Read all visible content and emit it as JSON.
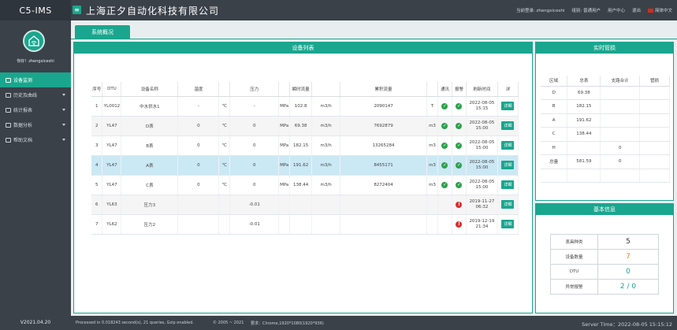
{
  "app": {
    "brand": "C5-IMS",
    "company": "上海正夕自动化科技有限公司",
    "menu_glyph": "≡"
  },
  "topnav": {
    "login": "当前登录: zhengxiceshi",
    "group": "组别: 普通用户",
    "user_center": "用户中心",
    "logout": "退出",
    "language": "简体中文"
  },
  "sidebar": {
    "greeting": "你好！zhengxiceshi",
    "items": [
      {
        "label": "设备监测",
        "active": true
      },
      {
        "label": "历史及曲线"
      },
      {
        "label": "统计报表"
      },
      {
        "label": "数据分析"
      },
      {
        "label": "帮助文档"
      }
    ],
    "version": "V2021.04.20"
  },
  "tab": {
    "label": "系统概况"
  },
  "devices": {
    "title": "设备列表",
    "headers": [
      "序号",
      "DTU",
      "设备名称",
      "温度",
      "",
      "压力",
      "",
      "瞬时流量",
      "",
      "累积流量",
      "",
      "通讯",
      "报警",
      "刷新时间",
      "详"
    ],
    "rows": [
      {
        "no": "1",
        "dtu": "YL0012",
        "name": "中水供水1",
        "temp": "-",
        "temp_unit": "℃",
        "press": "-",
        "press_unit": "MPa",
        "flow": "102.8",
        "flow_unit": "m3/h",
        "total": "2090147",
        "total_unit": "T",
        "comm": "ok",
        "alarm": "ok",
        "time1": "2022-08-05",
        "time2": "15:15",
        "detail": "详细"
      },
      {
        "no": "2",
        "dtu": "YL47",
        "name": "D表",
        "temp": "0",
        "temp_unit": "℃",
        "press": "0",
        "press_unit": "MPa",
        "flow": "69.38",
        "flow_unit": "m3/h",
        "total": "7692879",
        "total_unit": "m3",
        "comm": "ok",
        "alarm": "ok",
        "time1": "2022-08-05",
        "time2": "15:00",
        "detail": "详细"
      },
      {
        "no": "3",
        "dtu": "YL47",
        "name": "B表",
        "temp": "0",
        "temp_unit": "℃",
        "press": "0",
        "press_unit": "MPa",
        "flow": "182.15",
        "flow_unit": "m3/h",
        "total": "13265284",
        "total_unit": "m3",
        "comm": "ok",
        "alarm": "ok",
        "time1": "2022-08-05",
        "time2": "15:00",
        "detail": "详细"
      },
      {
        "no": "4",
        "dtu": "YL47",
        "name": "A表",
        "temp": "0",
        "temp_unit": "℃",
        "press": "0",
        "press_unit": "MPa",
        "flow": "191.62",
        "flow_unit": "m3/h",
        "total": "8455171",
        "total_unit": "m3",
        "comm": "ok",
        "alarm": "ok",
        "time1": "2022-08-05",
        "time2": "15:00",
        "detail": "详细"
      },
      {
        "no": "5",
        "dtu": "YL47",
        "name": "C表",
        "temp": "0",
        "temp_unit": "℃",
        "press": "0",
        "press_unit": "MPa",
        "flow": "138.44",
        "flow_unit": "m3/h",
        "total": "8272404",
        "total_unit": "m3",
        "comm": "ok",
        "alarm": "ok",
        "time1": "2022-08-05",
        "time2": "15:00",
        "detail": "详细"
      },
      {
        "no": "6",
        "dtu": "YL63",
        "name": "压力3",
        "temp": "",
        "temp_unit": "",
        "press": "-0.01",
        "press_unit": "",
        "flow": "",
        "flow_unit": "",
        "total": "",
        "total_unit": "",
        "comm": "",
        "alarm": "bad",
        "time1": "2019-11-27",
        "time2": "06:32",
        "detail": "详细"
      },
      {
        "no": "7",
        "dtu": "YL62",
        "name": "压力2",
        "temp": "",
        "temp_unit": "",
        "press": "-0.01",
        "press_unit": "",
        "flow": "",
        "flow_unit": "",
        "total": "",
        "total_unit": "",
        "comm": "",
        "alarm": "bad",
        "time1": "2019-12-19",
        "time2": "21:34",
        "detail": "详细"
      }
    ]
  },
  "realtime": {
    "title": "实时管损",
    "headers": [
      "区域",
      "总表",
      "支路合计",
      "管损"
    ],
    "rows": [
      [
        "D",
        "69.38",
        "",
        ""
      ],
      [
        "B",
        "182.15",
        "",
        ""
      ],
      [
        "A",
        "191.62",
        "",
        ""
      ],
      [
        "C",
        "138.44",
        "",
        ""
      ],
      [
        "H",
        "",
        "0",
        ""
      ],
      [
        "总量",
        "581.59",
        "0",
        ""
      ],
      [
        "",
        "",
        "",
        ""
      ]
    ]
  },
  "info": {
    "title": "基本信息",
    "rows": [
      {
        "label": "表具种类",
        "value": "5",
        "color": "#333333"
      },
      {
        "label": "设备数量",
        "value": "7",
        "color": "#f07a1a"
      },
      {
        "label": "DTU",
        "value": "0",
        "color": "#1aa68e"
      },
      {
        "label": "异常报警",
        "value": "2 / 0",
        "color": "#1aa68e"
      }
    ]
  },
  "footer": {
    "processed": "Processed in 0.018243 second(s), 21 queries, Gzip enabled.",
    "copyright": "© 2005 ~ 2021",
    "requirement": "要求：Chrome,1920*1080(1920*936)",
    "server_time": "Server Time：2022-08-05 15:15:12"
  }
}
